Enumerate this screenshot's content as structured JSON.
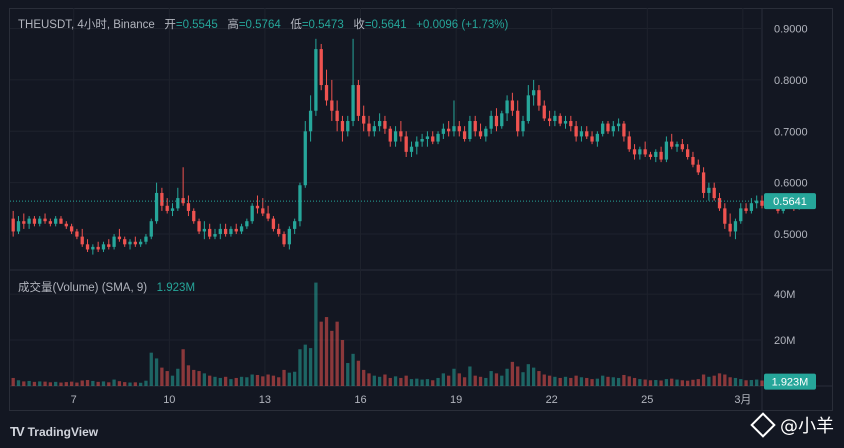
{
  "legend": {
    "symbol": "THEUSDT, 4小时, Binance",
    "open_label": "开",
    "open": "=0.5545",
    "high_label": "高",
    "high": "=0.5764",
    "low_label": "低",
    "low": "=0.5473",
    "close_label": "收",
    "close": "=0.5641",
    "change": "+0.0096 (+1.73%)"
  },
  "volume_legend": {
    "label": "成交量(Volume) (SMA, 9)",
    "value": "1.923M"
  },
  "branding": {
    "tradingview": "TradingView",
    "watermark": "@小羊"
  },
  "colors": {
    "up": "#26a69a",
    "down": "#ef5350",
    "background": "#131722",
    "grid": "#2a2e39",
    "axis_text": "#b2b5be"
  },
  "chart_data": {
    "type": "candlestick",
    "price_axis": {
      "ticks": [
        "0.9000",
        "0.8000",
        "0.7000",
        "0.6000",
        "0.5000"
      ],
      "tick_values": [
        0.9,
        0.8,
        0.7,
        0.6,
        0.5
      ],
      "range": [
        0.43,
        0.94
      ],
      "last_price_label": "0.5641",
      "last_price": 0.5641
    },
    "volume_axis": {
      "ticks": [
        "40M",
        "20M"
      ],
      "tick_values": [
        40,
        20
      ],
      "range": [
        0,
        47
      ],
      "last_volume_label": "1.923M",
      "last_volume": 1.923
    },
    "x_axis": {
      "labels": [
        "7",
        "10",
        "13",
        "16",
        "19",
        "22",
        "25",
        "3月"
      ],
      "label_days": [
        7,
        10,
        13,
        16,
        19,
        22,
        25,
        28
      ],
      "range_days": [
        5.0,
        28.6
      ]
    },
    "candles_per_day": 6,
    "first_candle_day": 5.1,
    "candles": [
      [
        0.53,
        0.545,
        0.495,
        0.505,
        3.5
      ],
      [
        0.505,
        0.535,
        0.5,
        0.525,
        2.5
      ],
      [
        0.525,
        0.54,
        0.51,
        0.52,
        2.0
      ],
      [
        0.52,
        0.535,
        0.51,
        0.53,
        2.2
      ],
      [
        0.53,
        0.535,
        0.515,
        0.52,
        1.8
      ],
      [
        0.52,
        0.535,
        0.515,
        0.53,
        2.0
      ],
      [
        0.53,
        0.54,
        0.52,
        0.525,
        1.9
      ],
      [
        0.525,
        0.53,
        0.515,
        0.52,
        1.6
      ],
      [
        0.52,
        0.535,
        0.515,
        0.53,
        1.8
      ],
      [
        0.53,
        0.535,
        0.52,
        0.52,
        1.5
      ],
      [
        0.52,
        0.525,
        0.51,
        0.515,
        1.7
      ],
      [
        0.515,
        0.52,
        0.5,
        0.505,
        1.9
      ],
      [
        0.505,
        0.51,
        0.49,
        0.495,
        1.5
      ],
      [
        0.495,
        0.51,
        0.475,
        0.48,
        2.4
      ],
      [
        0.48,
        0.49,
        0.465,
        0.47,
        2.6
      ],
      [
        0.47,
        0.48,
        0.46,
        0.475,
        2.2
      ],
      [
        0.475,
        0.485,
        0.465,
        0.47,
        1.8
      ],
      [
        0.47,
        0.485,
        0.465,
        0.48,
        2.0
      ],
      [
        0.48,
        0.49,
        0.47,
        0.475,
        1.6
      ],
      [
        0.475,
        0.5,
        0.47,
        0.495,
        2.8
      ],
      [
        0.495,
        0.51,
        0.485,
        0.49,
        2.1
      ],
      [
        0.49,
        0.495,
        0.475,
        0.48,
        1.7
      ],
      [
        0.48,
        0.49,
        0.47,
        0.485,
        1.5
      ],
      [
        0.485,
        0.495,
        0.475,
        0.48,
        1.6
      ],
      [
        0.48,
        0.49,
        0.475,
        0.485,
        1.4
      ],
      [
        0.485,
        0.5,
        0.48,
        0.495,
        2.3
      ],
      [
        0.495,
        0.53,
        0.49,
        0.525,
        14.5
      ],
      [
        0.525,
        0.6,
        0.52,
        0.58,
        12.0
      ],
      [
        0.58,
        0.59,
        0.545,
        0.555,
        8.0
      ],
      [
        0.555,
        0.57,
        0.54,
        0.545,
        6.5
      ],
      [
        0.545,
        0.56,
        0.535,
        0.55,
        4.5
      ],
      [
        0.55,
        0.59,
        0.545,
        0.57,
        7.5
      ],
      [
        0.57,
        0.63,
        0.555,
        0.56,
        16.0
      ],
      [
        0.56,
        0.575,
        0.535,
        0.545,
        9.0
      ],
      [
        0.545,
        0.55,
        0.52,
        0.525,
        7.0
      ],
      [
        0.525,
        0.53,
        0.5,
        0.505,
        6.5
      ],
      [
        0.505,
        0.525,
        0.49,
        0.51,
        5.5
      ],
      [
        0.51,
        0.52,
        0.49,
        0.495,
        4.5
      ],
      [
        0.495,
        0.51,
        0.49,
        0.5,
        4.0
      ],
      [
        0.5,
        0.52,
        0.49,
        0.51,
        3.5
      ],
      [
        0.51,
        0.52,
        0.495,
        0.5,
        4.0
      ],
      [
        0.5,
        0.515,
        0.495,
        0.51,
        3.0
      ],
      [
        0.51,
        0.52,
        0.5,
        0.505,
        3.5
      ],
      [
        0.505,
        0.52,
        0.5,
        0.515,
        4.0
      ],
      [
        0.515,
        0.53,
        0.51,
        0.525,
        3.8
      ],
      [
        0.525,
        0.56,
        0.52,
        0.555,
        5.0
      ],
      [
        0.555,
        0.575,
        0.54,
        0.55,
        4.8
      ],
      [
        0.55,
        0.57,
        0.535,
        0.54,
        4.2
      ],
      [
        0.54,
        0.555,
        0.525,
        0.53,
        5.0
      ],
      [
        0.53,
        0.535,
        0.505,
        0.51,
        4.5
      ],
      [
        0.51,
        0.52,
        0.495,
        0.5,
        3.8
      ],
      [
        0.5,
        0.505,
        0.475,
        0.48,
        7.0
      ],
      [
        0.48,
        0.515,
        0.47,
        0.51,
        5.8
      ],
      [
        0.51,
        0.53,
        0.5,
        0.525,
        6.2
      ],
      [
        0.525,
        0.6,
        0.515,
        0.595,
        16.0
      ],
      [
        0.595,
        0.72,
        0.59,
        0.7,
        18.0
      ],
      [
        0.7,
        0.77,
        0.68,
        0.74,
        16.5
      ],
      [
        0.74,
        0.88,
        0.73,
        0.86,
        45.0
      ],
      [
        0.86,
        0.87,
        0.78,
        0.79,
        28.0
      ],
      [
        0.79,
        0.82,
        0.75,
        0.76,
        30.0
      ],
      [
        0.76,
        0.8,
        0.72,
        0.74,
        24.0
      ],
      [
        0.74,
        0.76,
        0.7,
        0.72,
        28.0
      ],
      [
        0.72,
        0.73,
        0.68,
        0.7,
        20.0
      ],
      [
        0.7,
        0.73,
        0.69,
        0.72,
        10.0
      ],
      [
        0.72,
        0.88,
        0.71,
        0.79,
        14.0
      ],
      [
        0.79,
        0.8,
        0.72,
        0.73,
        11.0
      ],
      [
        0.73,
        0.75,
        0.7,
        0.715,
        7.0
      ],
      [
        0.715,
        0.73,
        0.69,
        0.7,
        5.5
      ],
      [
        0.7,
        0.72,
        0.69,
        0.71,
        4.5
      ],
      [
        0.71,
        0.735,
        0.7,
        0.72,
        4.0
      ],
      [
        0.72,
        0.73,
        0.695,
        0.705,
        5.0
      ],
      [
        0.705,
        0.71,
        0.67,
        0.68,
        3.5
      ],
      [
        0.68,
        0.71,
        0.67,
        0.7,
        4.2
      ],
      [
        0.7,
        0.72,
        0.68,
        0.69,
        3.5
      ],
      [
        0.69,
        0.7,
        0.65,
        0.66,
        4.5
      ],
      [
        0.66,
        0.68,
        0.65,
        0.67,
        3.0
      ],
      [
        0.67,
        0.69,
        0.655,
        0.68,
        3.2
      ],
      [
        0.68,
        0.695,
        0.67,
        0.685,
        2.8
      ],
      [
        0.685,
        0.7,
        0.67,
        0.69,
        3.0
      ],
      [
        0.69,
        0.7,
        0.675,
        0.68,
        2.5
      ],
      [
        0.68,
        0.7,
        0.675,
        0.695,
        3.5
      ],
      [
        0.695,
        0.715,
        0.685,
        0.705,
        5.5
      ],
      [
        0.705,
        0.72,
        0.69,
        0.7,
        4.5
      ],
      [
        0.7,
        0.76,
        0.69,
        0.71,
        7.5
      ],
      [
        0.71,
        0.72,
        0.69,
        0.7,
        5.5
      ],
      [
        0.7,
        0.71,
        0.68,
        0.685,
        3.8
      ],
      [
        0.685,
        0.73,
        0.68,
        0.72,
        8.5
      ],
      [
        0.72,
        0.73,
        0.69,
        0.7,
        4.5
      ],
      [
        0.7,
        0.715,
        0.685,
        0.69,
        4.0
      ],
      [
        0.69,
        0.71,
        0.68,
        0.705,
        3.5
      ],
      [
        0.705,
        0.74,
        0.695,
        0.73,
        6.5
      ],
      [
        0.73,
        0.745,
        0.7,
        0.71,
        5.5
      ],
      [
        0.71,
        0.74,
        0.705,
        0.735,
        4.5
      ],
      [
        0.735,
        0.77,
        0.72,
        0.76,
        7.5
      ],
      [
        0.76,
        0.775,
        0.73,
        0.74,
        10.5
      ],
      [
        0.74,
        0.76,
        0.69,
        0.7,
        8.5
      ],
      [
        0.7,
        0.73,
        0.69,
        0.72,
        6.0
      ],
      [
        0.72,
        0.79,
        0.715,
        0.77,
        9.5
      ],
      [
        0.77,
        0.8,
        0.75,
        0.78,
        8.0
      ],
      [
        0.78,
        0.79,
        0.74,
        0.75,
        6.5
      ],
      [
        0.75,
        0.76,
        0.72,
        0.725,
        5.0
      ],
      [
        0.725,
        0.74,
        0.71,
        0.72,
        4.5
      ],
      [
        0.72,
        0.74,
        0.71,
        0.73,
        4.0
      ],
      [
        0.73,
        0.735,
        0.71,
        0.715,
        3.5
      ],
      [
        0.715,
        0.73,
        0.705,
        0.72,
        4.0
      ],
      [
        0.72,
        0.73,
        0.7,
        0.71,
        3.5
      ],
      [
        0.71,
        0.72,
        0.68,
        0.69,
        4.5
      ],
      [
        0.69,
        0.71,
        0.68,
        0.7,
        3.8
      ],
      [
        0.7,
        0.71,
        0.685,
        0.69,
        3.5
      ],
      [
        0.69,
        0.7,
        0.675,
        0.68,
        3.0
      ],
      [
        0.68,
        0.7,
        0.67,
        0.695,
        3.2
      ],
      [
        0.695,
        0.72,
        0.69,
        0.715,
        4.5
      ],
      [
        0.715,
        0.72,
        0.695,
        0.7,
        4.0
      ],
      [
        0.7,
        0.72,
        0.69,
        0.71,
        3.8
      ],
      [
        0.71,
        0.725,
        0.7,
        0.715,
        3.5
      ],
      [
        0.715,
        0.72,
        0.68,
        0.69,
        4.8
      ],
      [
        0.69,
        0.7,
        0.66,
        0.665,
        4.2
      ],
      [
        0.665,
        0.675,
        0.645,
        0.655,
        3.5
      ],
      [
        0.655,
        0.67,
        0.645,
        0.665,
        3.0
      ],
      [
        0.665,
        0.68,
        0.65,
        0.655,
        2.8
      ],
      [
        0.655,
        0.66,
        0.645,
        0.65,
        2.5
      ],
      [
        0.65,
        0.665,
        0.64,
        0.66,
        2.6
      ],
      [
        0.66,
        0.67,
        0.64,
        0.645,
        2.4
      ],
      [
        0.645,
        0.69,
        0.64,
        0.68,
        3.0
      ],
      [
        0.68,
        0.695,
        0.665,
        0.67,
        3.2
      ],
      [
        0.67,
        0.68,
        0.66,
        0.675,
        2.8
      ],
      [
        0.675,
        0.685,
        0.66,
        0.665,
        2.5
      ],
      [
        0.665,
        0.675,
        0.645,
        0.65,
        2.3
      ],
      [
        0.65,
        0.66,
        0.63,
        0.635,
        2.7
      ],
      [
        0.635,
        0.645,
        0.615,
        0.62,
        3.0
      ],
      [
        0.62,
        0.63,
        0.57,
        0.58,
        5.0
      ],
      [
        0.58,
        0.6,
        0.565,
        0.59,
        4.0
      ],
      [
        0.59,
        0.6,
        0.565,
        0.57,
        4.5
      ],
      [
        0.57,
        0.58,
        0.545,
        0.55,
        5.5
      ],
      [
        0.55,
        0.56,
        0.51,
        0.52,
        5.0
      ],
      [
        0.52,
        0.54,
        0.495,
        0.505,
        3.8
      ],
      [
        0.505,
        0.53,
        0.49,
        0.525,
        3.5
      ],
      [
        0.525,
        0.56,
        0.52,
        0.55,
        3.0
      ],
      [
        0.55,
        0.56,
        0.54,
        0.545,
        2.5
      ],
      [
        0.545,
        0.57,
        0.54,
        0.56,
        2.6
      ],
      [
        0.56,
        0.575,
        0.55,
        0.565,
        2.8
      ],
      [
        0.565,
        0.575,
        0.55,
        0.555,
        2.4
      ],
      [
        0.555,
        0.57,
        0.55,
        0.565,
        2.2
      ],
      [
        0.565,
        0.575,
        0.555,
        0.56,
        2.0
      ],
      [
        0.56,
        0.57,
        0.54,
        0.545,
        2.5
      ],
      [
        0.545,
        0.57,
        0.54,
        0.565,
        2.3
      ],
      [
        0.565,
        0.575,
        0.555,
        0.56,
        2.1
      ],
      [
        0.56,
        0.565,
        0.545,
        0.555,
        2.0
      ],
      [
        0.5545,
        0.5764,
        0.5473,
        0.5641,
        1.923
      ]
    ]
  }
}
